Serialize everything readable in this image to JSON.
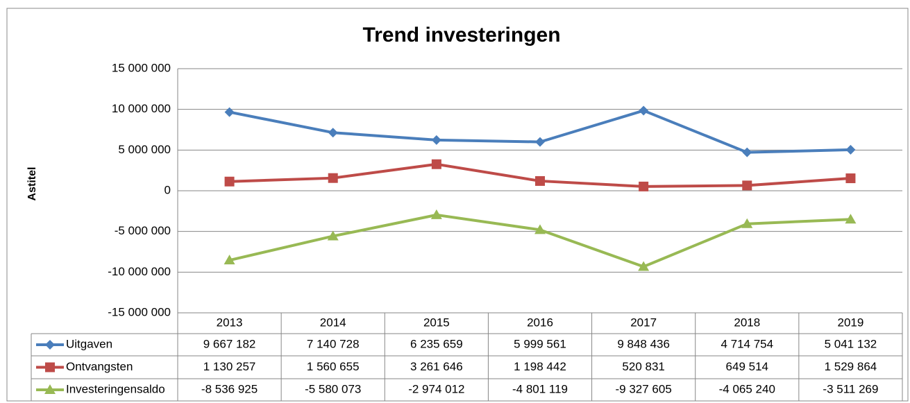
{
  "chart_data": {
    "type": "line",
    "title": "Trend investeringen",
    "y_label": "Astitel",
    "categories": [
      "2013",
      "2014",
      "2015",
      "2016",
      "2017",
      "2018",
      "2019"
    ],
    "series": [
      {
        "name": "Uitgaven",
        "color": "#4a7ebb",
        "marker": "diamond",
        "values": [
          9667182,
          7140728,
          6235659,
          5999561,
          9848436,
          4714754,
          5041132
        ],
        "value_labels": [
          "9 667 182",
          "7 140 728",
          "6 235 659",
          "5 999 561",
          "9 848 436",
          "4 714 754",
          "5 041 132"
        ]
      },
      {
        "name": "Ontvangsten",
        "color": "#be4b48",
        "marker": "square",
        "values": [
          1130257,
          1560655,
          3261646,
          1198442,
          520831,
          649514,
          1529864
        ],
        "value_labels": [
          "1 130 257",
          "1 560 655",
          "3 261 646",
          "1 198 442",
          "520 831",
          "649 514",
          "1 529 864"
        ]
      },
      {
        "name": "Investeringensaldo",
        "color": "#98b954",
        "marker": "triangle",
        "values": [
          -8536925,
          -5580073,
          -2974012,
          -4801119,
          -9327605,
          -4065240,
          -3511269
        ],
        "value_labels": [
          "-8 536 925",
          "-5 580 073",
          "-2 974 012",
          "-4 801 119",
          "-9 327 605",
          "-4 065 240",
          "-3 511 269"
        ]
      }
    ],
    "ylim": [
      -15000000,
      15000000
    ],
    "yticks": [
      {
        "value": -15000000,
        "label": "-15 000 000"
      },
      {
        "value": -10000000,
        "label": "-10 000 000"
      },
      {
        "value": -5000000,
        "label": "-5 000 000"
      },
      0,
      {
        "value": 5000000,
        "label": "5 000 000"
      },
      {
        "value": 10000000,
        "label": "10 000 000"
      },
      {
        "value": 15000000,
        "label": "15 000 000"
      }
    ],
    "grid": true
  }
}
